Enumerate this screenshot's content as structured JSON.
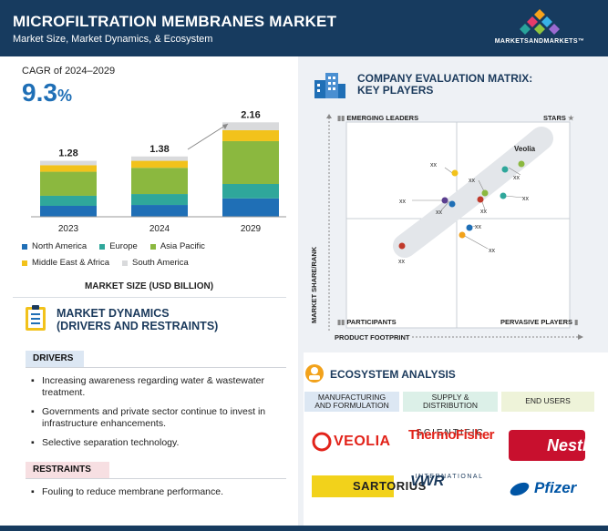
{
  "header": {
    "title": "MICROFILTRATION MEMBRANES MARKET",
    "subtitle": "Market Size, Market Dynamics, & Ecosystem",
    "logo_text": "MARKETSANDMARKETS™"
  },
  "market_size": {
    "cagr_label": "CAGR of 2024–2029",
    "cagr_value": "9.3",
    "cagr_unit": "%",
    "caption": "MARKET SIZE (USD BILLION)",
    "legend": [
      "North America",
      "Europe",
      "Asia Pacific",
      "Middle East & Africa",
      "South America"
    ]
  },
  "chart_data": {
    "type": "bar",
    "stacked": true,
    "categories": [
      "2023",
      "2024",
      "2029"
    ],
    "totals": [
      1.28,
      1.38,
      2.16
    ],
    "series": [
      {
        "name": "North America",
        "values": [
          0.25,
          0.27,
          0.42
        ]
      },
      {
        "name": "Europe",
        "values": [
          0.23,
          0.25,
          0.33
        ]
      },
      {
        "name": "Asia Pacific",
        "values": [
          0.55,
          0.6,
          0.98
        ]
      },
      {
        "name": "Middle East & Africa",
        "values": [
          0.15,
          0.16,
          0.25
        ]
      },
      {
        "name": "South America",
        "values": [
          0.1,
          0.1,
          0.18
        ]
      }
    ],
    "colors": [
      "#1f6fb6",
      "#2fa79b",
      "#8bb83f",
      "#f2c21b",
      "#d9dadc"
    ]
  },
  "market_dynamics": {
    "title_line1": "MARKET DYNAMICS",
    "title_line2": "(DRIVERS AND RESTRAINTS)",
    "drivers_label": "DRIVERS",
    "drivers": [
      "Increasing awareness regarding water & wastewater treatment.",
      "Governments and private sector continue to invest in infrastructure enhancements.",
      "Selective separation technology."
    ],
    "restraints_label": "RESTRAINTS",
    "restraints": [
      "Fouling to reduce membrane performance."
    ]
  },
  "evaluation_matrix": {
    "title_line1": "COMPANY EVALUATION MATRIX:",
    "title_line2": "KEY PLAYERS",
    "quadrants": {
      "top_left": "EMERGING LEADERS",
      "top_right": "STARS",
      "bottom_left": "PARTICIPANTS",
      "bottom_right": "PERVASIVE PLAYERS"
    },
    "y_axis": "MARKET SHARE/RANK",
    "x_axis": "PRODUCT FOOTPRINT",
    "highlight_label": "Veolia",
    "point_label": "xx"
  },
  "ecosystem": {
    "title": "ECOSYSTEM ANALYSIS",
    "columns": [
      {
        "line1": "MANUFACTURING",
        "line2": "AND FORMULATION"
      },
      {
        "line1": "SUPPLY &",
        "line2": "DISTRIBUTION"
      },
      {
        "line1": "END USERS",
        "line2": ""
      }
    ],
    "brands": {
      "veolia": "VEOLIA",
      "thermo_line1": "ThermoFisher",
      "thermo_line2": "SCIENTIFIC",
      "nestle": "Nestlé",
      "sartorius": "SARTORIUS",
      "vwr_line1": "VWR",
      "vwr_line2": "INTERNATIONAL",
      "pfizer": "Pfizer"
    }
  },
  "colors": {
    "header_bg": "#173b5f",
    "accent_blue": "#1f6fb6",
    "panel_bg": "#eef1f5",
    "drivers_tag": "#dce7f3",
    "restraints_tag": "#f7dfe2"
  }
}
